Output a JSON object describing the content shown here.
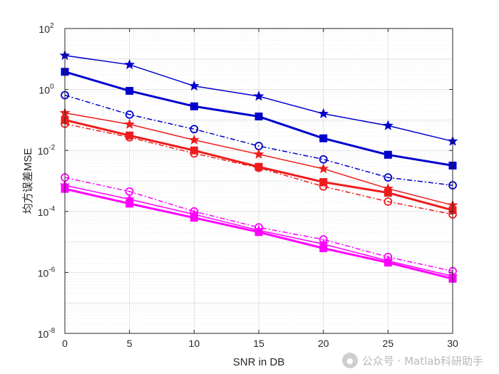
{
  "chart_data": {
    "type": "line",
    "xlabel": "SNR in DB",
    "ylabel": "均方误差MSE",
    "x": [
      0,
      5,
      10,
      15,
      20,
      25,
      30
    ],
    "xlim": [
      0,
      30
    ],
    "ylim": [
      1e-08,
      100
    ],
    "yscale": "log",
    "x_ticks": [
      "0",
      "5",
      "10",
      "15",
      "20",
      "25",
      "30"
    ],
    "y_ticks": [
      {
        "base": "10",
        "exp": "-8",
        "value": 1e-08
      },
      {
        "base": "10",
        "exp": "-6",
        "value": 1e-06
      },
      {
        "base": "10",
        "exp": "-4",
        "value": 0.0001
      },
      {
        "base": "10",
        "exp": "-2",
        "value": 0.01
      },
      {
        "base": "10",
        "exp": "0",
        "value": 1
      },
      {
        "base": "10",
        "exp": "2",
        "value": 100
      }
    ],
    "grid": true,
    "minor_grid": true,
    "series": [
      {
        "color": "#0000cd",
        "marker": "star",
        "dash": "solid",
        "width": 1.5,
        "values": [
          13,
          6.5,
          1.3,
          0.6,
          0.16,
          0.065,
          0.02
        ]
      },
      {
        "color": "#0000cd",
        "marker": "square",
        "dash": "solid",
        "width": 3,
        "values": [
          3.8,
          0.9,
          0.28,
          0.13,
          0.025,
          0.0072,
          0.0032
        ]
      },
      {
        "color": "#0000cd",
        "marker": "circle",
        "dash": "dashdot",
        "width": 1.5,
        "values": [
          0.65,
          0.15,
          0.05,
          0.014,
          0.0051,
          0.0013,
          0.00072
        ]
      },
      {
        "color": "#ee1c1c",
        "marker": "star",
        "dash": "solid",
        "width": 1.5,
        "values": [
          0.17,
          0.072,
          0.022,
          0.0075,
          0.0025,
          0.00056,
          0.00016
        ]
      },
      {
        "color": "#ee1c1c",
        "marker": "square",
        "dash": "solid",
        "width": 3,
        "values": [
          0.1,
          0.031,
          0.01,
          0.0029,
          0.00092,
          0.00041,
          0.00011
        ]
      },
      {
        "color": "#ee1c1c",
        "marker": "circle",
        "dash": "dashdot",
        "width": 1.5,
        "values": [
          0.075,
          0.027,
          0.008,
          0.0027,
          0.00066,
          0.00021,
          8e-05
        ]
      },
      {
        "color": "#ff00ff",
        "marker": "circle",
        "dash": "dashdot",
        "width": 1.5,
        "values": [
          0.0013,
          0.00045,
          0.0001,
          3e-05,
          1.2e-05,
          3.2e-06,
          1.1e-06
        ]
      },
      {
        "color": "#ff00ff",
        "marker": "star",
        "dash": "solid",
        "width": 1.5,
        "values": [
          0.00072,
          0.00025,
          8e-05,
          2.4e-05,
          8.5e-06,
          2.4e-06,
          7.5e-07
        ]
      },
      {
        "color": "#ff00ff",
        "marker": "square",
        "dash": "solid",
        "width": 3,
        "values": [
          0.00055,
          0.00018,
          6.2e-05,
          2.1e-05,
          6.2e-06,
          2.1e-06,
          6.2e-07
        ]
      }
    ]
  },
  "watermark": {
    "text": "公众号 · Matlab科研助手",
    "icon": "wechat-icon"
  }
}
